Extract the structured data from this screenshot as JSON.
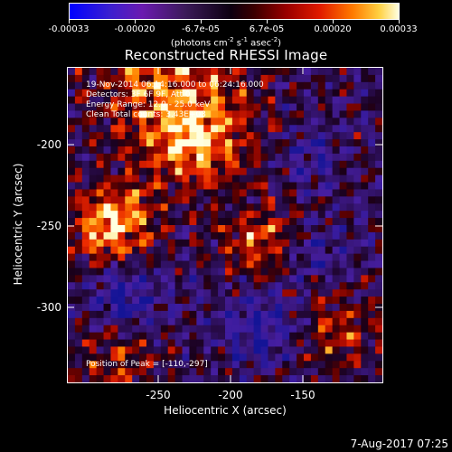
{
  "colorbar": {
    "ticks": [
      "-0.00033",
      "-0.00020",
      "-6.7e-05",
      "6.7e-05",
      "0.00020",
      "0.00033"
    ],
    "units_html": "(photons cm<sup>-2</sup> s<sup>-1</sup> asec<sup>-2</sup>)"
  },
  "title": "Reconstructed RHESSI Image",
  "annotations": {
    "time": "19-Nov-2014 06:14:16.000 to 06:24:16.000",
    "detectors": "Detectors: 3F 6F 9F, Att 0",
    "energy": "Energy Range: 12.0 - 25.0 keV",
    "method": "Clean    Total counts: 3.43E+03",
    "peak": "Position of Peak = [-110,-297]"
  },
  "axes": {
    "xlabel": "Heliocentric X (arcsec)",
    "ylabel": "Heliocentric Y (arcsec)",
    "xticks": [
      "-250",
      "-200",
      "-150"
    ],
    "yticks": [
      "-200",
      "-250",
      "-300"
    ]
  },
  "footer": "7-Aug-2017 07:25"
}
